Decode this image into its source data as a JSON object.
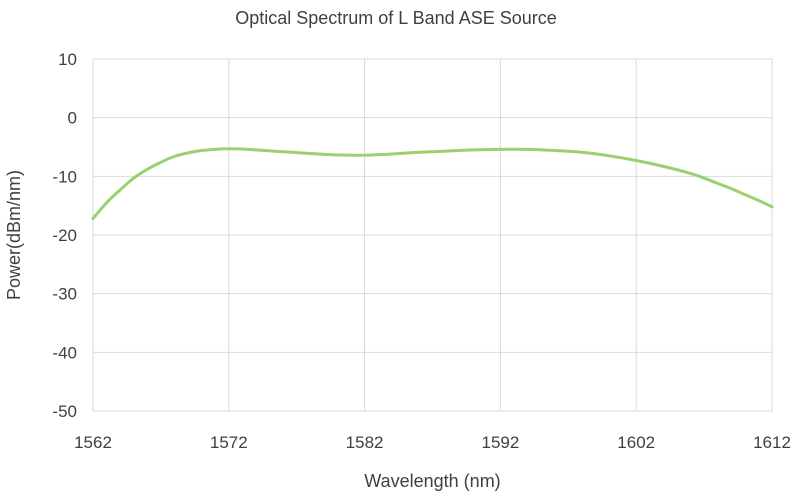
{
  "chart_data": {
    "type": "line",
    "title": "Optical Spectrum of L Band ASE  Source",
    "xlabel": "Wavelength (nm)",
    "ylabel": "Power(dBm/nm)",
    "xlim": [
      1562,
      1612
    ],
    "ylim": [
      -50,
      10
    ],
    "xticks": [
      1562,
      1572,
      1582,
      1592,
      1602,
      1612
    ],
    "yticks": [
      10,
      0,
      -10,
      -20,
      -30,
      -40,
      -50
    ],
    "grid": true,
    "legend": "none",
    "series": [
      {
        "color": "#9bd06e",
        "x": [
          1562,
          1563,
          1564,
          1565,
          1566,
          1567,
          1568,
          1569,
          1570,
          1571,
          1572,
          1573,
          1574,
          1576,
          1578,
          1580,
          1582,
          1584,
          1586,
          1588,
          1590,
          1592,
          1594,
          1596,
          1598,
          1600,
          1602,
          1604,
          1606,
          1607,
          1608,
          1609,
          1610,
          1611,
          1612
        ],
        "y": [
          -17.2,
          -14.5,
          -12.3,
          -10.3,
          -8.8,
          -7.6,
          -6.6,
          -6.0,
          -5.6,
          -5.4,
          -5.3,
          -5.35,
          -5.5,
          -5.8,
          -6.1,
          -6.35,
          -6.4,
          -6.2,
          -5.9,
          -5.7,
          -5.5,
          -5.4,
          -5.4,
          -5.6,
          -5.9,
          -6.5,
          -7.3,
          -8.3,
          -9.5,
          -10.3,
          -11.2,
          -12.1,
          -13.1,
          -14.1,
          -15.2
        ]
      }
    ]
  }
}
